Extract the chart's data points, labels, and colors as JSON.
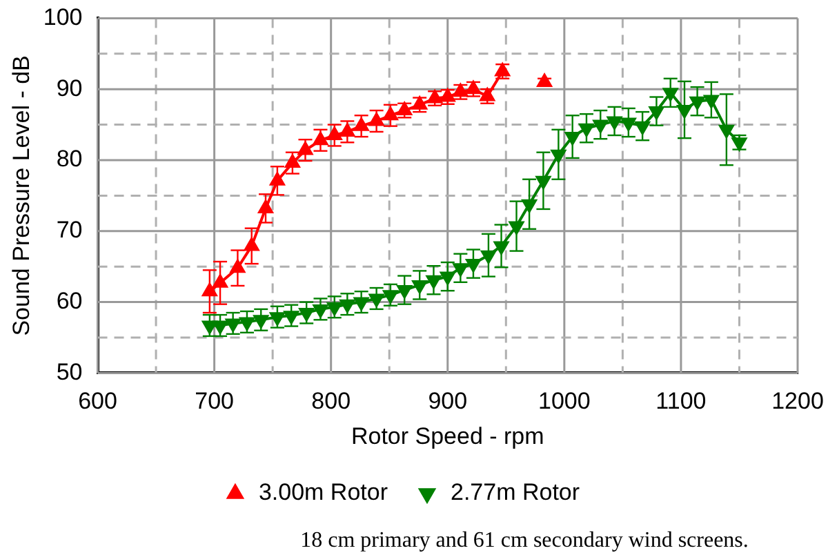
{
  "chart_data": {
    "type": "line",
    "xlabel": "Rotor Speed - rpm",
    "ylabel": "Sound Pressure Level - dB",
    "xlim": [
      600,
      1200
    ],
    "ylim": [
      50,
      100
    ],
    "xticks": [
      600,
      {
        "value": 650,
        "label": null
      },
      700,
      {
        "value": 750,
        "label": null
      },
      800,
      {
        "value": 850,
        "label": null
      },
      900,
      {
        "value": 950,
        "label": null
      },
      1000,
      {
        "value": 1050,
        "label": null
      },
      1100,
      {
        "value": 1150,
        "label": null
      },
      1200
    ],
    "yticks": [
      50,
      {
        "value": 55,
        "label": null
      },
      60,
      {
        "value": 65,
        "label": null
      },
      70,
      {
        "value": 75,
        "label": null
      },
      80,
      {
        "value": 85,
        "label": null
      },
      90,
      {
        "value": 95,
        "label": null
      },
      100
    ],
    "grid": true,
    "legend": "bottom",
    "marker": "triangle",
    "line_style": "solid",
    "annotations": [
      "18 cm primary and 61 cm secondary wind screens."
    ],
    "series": [
      {
        "name": "3.00m Rotor",
        "color": "#ff0000",
        "x": [
          696,
          705,
          720,
          732,
          744,
          754,
          767,
          778,
          791,
          803,
          814,
          826,
          839,
          851,
          863,
          876,
          889,
          900,
          911,
          922,
          934,
          947,
          965,
          983
        ],
        "values": [
          61.5,
          62.7,
          64.8,
          67.9,
          73.2,
          77.1,
          79.6,
          81.4,
          82.8,
          83.5,
          84.0,
          84.8,
          85.5,
          86.3,
          87.0,
          87.8,
          88.7,
          88.9,
          89.6,
          90.0,
          89.0,
          92.5,
          null,
          91.0
        ],
        "errors": [
          3,
          3,
          2.5,
          2.5,
          2,
          2,
          1.5,
          1.5,
          1.5,
          1.5,
          1.5,
          1.5,
          1.5,
          1.5,
          1,
          1,
          1,
          1,
          1,
          1,
          1,
          1,
          null,
          0.5
        ]
      },
      {
        "name": "2.77m Rotor",
        "color": "#008000",
        "x": [
          696,
          705,
          716,
          728,
          740,
          754,
          766,
          779,
          791,
          803,
          814,
          826,
          839,
          851,
          863,
          876,
          888,
          900,
          911,
          922,
          935,
          946,
          959,
          970,
          982,
          995,
          1007,
          1019,
          1031,
          1043,
          1055,
          1067,
          1079,
          1091,
          1103,
          1114,
          1126,
          1139,
          1150
        ],
        "values": [
          56.7,
          56.7,
          57.0,
          57.2,
          57.5,
          57.9,
          58.1,
          58.5,
          59.0,
          59.3,
          59.7,
          60.0,
          60.5,
          61.0,
          61.7,
          62.4,
          63.1,
          63.6,
          64.8,
          65.4,
          66.6,
          67.9,
          70.7,
          73.8,
          77.1,
          80.8,
          83.3,
          84.5,
          85.0,
          85.5,
          85.3,
          84.8,
          86.9,
          89.5,
          87.1,
          88.3,
          88.5,
          84.3,
          82.5
        ],
        "errors": [
          1.5,
          1.5,
          1.5,
          1.5,
          1.5,
          1.5,
          1.5,
          1.5,
          1.5,
          1.5,
          1.5,
          1.5,
          1.5,
          1.5,
          2,
          2,
          2,
          2,
          2,
          2,
          3,
          3,
          3.5,
          3.5,
          4,
          3.5,
          3,
          2,
          2,
          2,
          2,
          2,
          2,
          2,
          4,
          2,
          2.5,
          5,
          1
        ]
      }
    ]
  }
}
